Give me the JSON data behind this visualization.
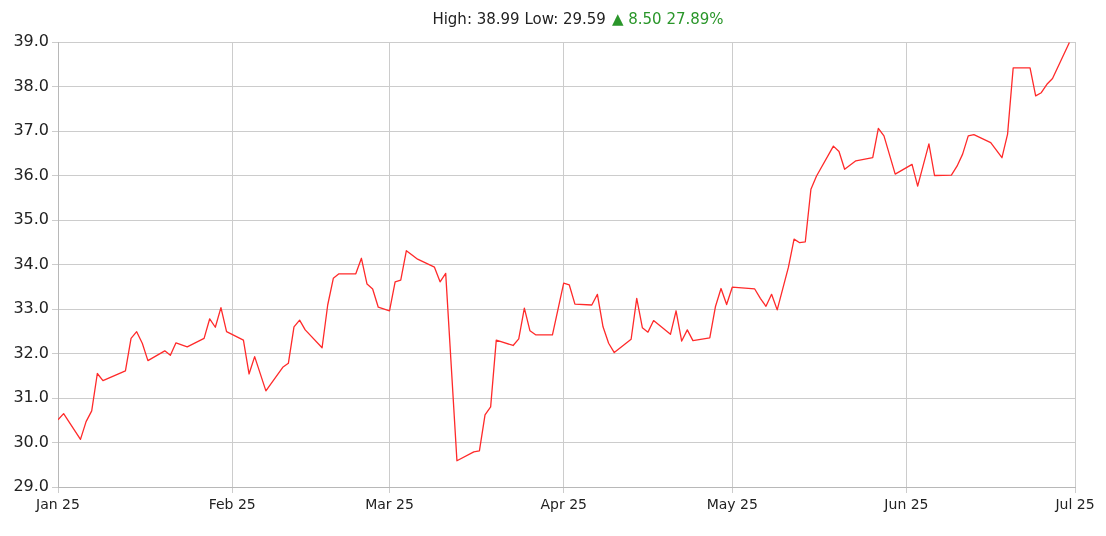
{
  "chart_data": {
    "type": "line",
    "title": "High: 38.99 Low: 29.59",
    "subtitle": "▲ 8.50 27.89%",
    "x": [
      "2025-01-01",
      "2025-01-02",
      "2025-01-05",
      "2025-01-06",
      "2025-01-07",
      "2025-01-08",
      "2025-01-09",
      "2025-01-13",
      "2025-01-14",
      "2025-01-15",
      "2025-01-16",
      "2025-01-17",
      "2025-01-20",
      "2025-01-21",
      "2025-01-22",
      "2025-01-24",
      "2025-01-27",
      "2025-01-28",
      "2025-01-29",
      "2025-01-30",
      "2025-01-31",
      "2025-02-03",
      "2025-02-04",
      "2025-02-05",
      "2025-02-07",
      "2025-02-10",
      "2025-02-11",
      "2025-02-12",
      "2025-02-13",
      "2025-02-14",
      "2025-02-17",
      "2025-02-18",
      "2025-02-19",
      "2025-02-20",
      "2025-02-23",
      "2025-02-24",
      "2025-02-25",
      "2025-02-26",
      "2025-02-27",
      "2025-03-01",
      "2025-03-02",
      "2025-03-03",
      "2025-03-04",
      "2025-03-06",
      "2025-03-09",
      "2025-03-10",
      "2025-03-11",
      "2025-03-13",
      "2025-03-16",
      "2025-03-17",
      "2025-03-18",
      "2025-03-19",
      "2025-03-20",
      "2025-03-23",
      "2025-03-24",
      "2025-03-25",
      "2025-03-26",
      "2025-03-27",
      "2025-03-30",
      "2025-04-01",
      "2025-04-02",
      "2025-04-03",
      "2025-04-06",
      "2025-04-07",
      "2025-04-08",
      "2025-04-09",
      "2025-04-10",
      "2025-04-13",
      "2025-04-14",
      "2025-04-15",
      "2025-04-16",
      "2025-04-17",
      "2025-04-20",
      "2025-04-21",
      "2025-04-22",
      "2025-04-23",
      "2025-04-24",
      "2025-04-27",
      "2025-04-28",
      "2025-04-29",
      "2025-04-30",
      "2025-05-01",
      "2025-05-05",
      "2025-05-06",
      "2025-05-07",
      "2025-05-08",
      "2025-05-09",
      "2025-05-11",
      "2025-05-12",
      "2025-05-13",
      "2025-05-14",
      "2025-05-15",
      "2025-05-16",
      "2025-05-19",
      "2025-05-20",
      "2025-05-21",
      "2025-05-23",
      "2025-05-26",
      "2025-05-27",
      "2025-05-28",
      "2025-05-30",
      "2025-06-02",
      "2025-06-03",
      "2025-06-05",
      "2025-06-06",
      "2025-06-09",
      "2025-06-10",
      "2025-06-11",
      "2025-06-12",
      "2025-06-13",
      "2025-06-16",
      "2025-06-18",
      "2025-06-19",
      "2025-06-20",
      "2025-06-23",
      "2025-06-24",
      "2025-06-25",
      "2025-06-26",
      "2025-06-27",
      "2025-06-30"
    ],
    "values": [
      30.51,
      30.65,
      30.07,
      30.47,
      30.71,
      31.55,
      31.39,
      31.61,
      32.34,
      32.49,
      32.23,
      31.84,
      32.06,
      31.96,
      32.24,
      32.15,
      32.34,
      32.78,
      32.59,
      33.03,
      32.49,
      32.3,
      31.54,
      31.93,
      31.16,
      31.69,
      31.78,
      32.6,
      32.75,
      32.53,
      32.13,
      33.09,
      33.69,
      33.79,
      33.79,
      34.14,
      33.56,
      33.45,
      33.04,
      32.96,
      33.61,
      33.65,
      34.31,
      34.12,
      33.94,
      33.61,
      33.8,
      29.59,
      29.79,
      29.81,
      30.62,
      30.8,
      32.3,
      32.18,
      32.33,
      33.02,
      32.51,
      32.42,
      32.42,
      33.58,
      33.54,
      33.11,
      33.09,
      33.33,
      32.6,
      32.23,
      32.02,
      32.32,
      33.24,
      32.58,
      32.48,
      32.74,
      32.43,
      32.96,
      32.28,
      32.53,
      32.29,
      32.35,
      33.05,
      33.46,
      33.1,
      33.49,
      33.45,
      33.24,
      33.06,
      33.33,
      32.98,
      33.94,
      34.57,
      34.49,
      34.51,
      35.69,
      35.99,
      36.66,
      36.54,
      36.14,
      36.33,
      36.4,
      37.06,
      36.89,
      36.03,
      36.25,
      35.76,
      36.71,
      36,
      36.01,
      36.21,
      36.48,
      36.89,
      36.92,
      36.74,
      36.4,
      36.93,
      38.42,
      38.42,
      37.79,
      37.86,
      38.05,
      38.18,
      38.99
    ],
    "color": "#ff2a2a",
    "xlim": [
      "2025-01",
      "2025-07"
    ],
    "xticks": [
      {
        "value": "2025-01",
        "label": "Jan 25"
      },
      {
        "value": "2025-02",
        "label": "Feb 25"
      },
      {
        "value": "2025-03",
        "label": "Mar 25"
      },
      {
        "value": "2025-04",
        "label": "Apr 25"
      },
      {
        "value": "2025-05",
        "label": "May 25"
      },
      {
        "value": "2025-06",
        "label": "Jun 25"
      },
      {
        "value": "2025-07",
        "label": "Jul 25"
      }
    ],
    "ylim": [
      29,
      39
    ],
    "yticks": [
      {
        "value": 29,
        "label": "29.0"
      },
      {
        "value": 30,
        "label": "30.0"
      },
      {
        "value": 31,
        "label": "31.0"
      },
      {
        "value": 32,
        "label": "32.0"
      },
      {
        "value": 33,
        "label": "33.0"
      },
      {
        "value": 34,
        "label": "34.0"
      },
      {
        "value": 35,
        "label": "35.0"
      },
      {
        "value": 36,
        "label": "36.0"
      },
      {
        "value": 37,
        "label": "37.0"
      },
      {
        "value": 38,
        "label": "38.0"
      },
      {
        "value": 39,
        "label": "39.0"
      }
    ],
    "grid": true
  }
}
